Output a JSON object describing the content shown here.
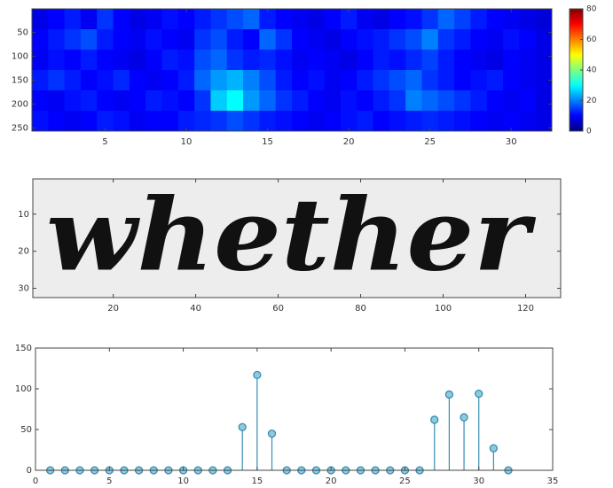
{
  "chart_data": [
    {
      "type": "heatmap",
      "xlim": [
        0.5,
        32.5
      ],
      "ylim": [
        0.5,
        256.5
      ],
      "xticks": [
        5,
        10,
        15,
        20,
        25,
        30
      ],
      "yticks": [
        50,
        100,
        150,
        200,
        250
      ],
      "clim": [
        0,
        80
      ],
      "cticks": [
        0,
        20,
        40,
        60,
        80
      ],
      "z": [
        [
          8,
          10,
          12,
          9,
          14,
          10,
          8,
          9,
          11,
          10,
          12,
          14,
          16,
          18,
          12,
          10,
          9,
          8,
          10,
          12,
          9,
          8,
          10,
          11,
          14,
          18,
          15,
          12,
          10,
          9,
          8,
          7
        ],
        [
          10,
          12,
          14,
          16,
          12,
          10,
          9,
          11,
          10,
          9,
          14,
          16,
          12,
          10,
          18,
          14,
          10,
          9,
          8,
          10,
          11,
          12,
          14,
          16,
          20,
          14,
          12,
          10,
          9,
          11,
          10,
          8
        ],
        [
          9,
          11,
          10,
          12,
          10,
          9,
          8,
          10,
          12,
          11,
          16,
          18,
          14,
          12,
          13,
          11,
          9,
          10,
          9,
          8,
          10,
          12,
          11,
          13,
          15,
          12,
          10,
          9,
          8,
          10,
          9,
          8
        ],
        [
          12,
          14,
          12,
          10,
          11,
          13,
          10,
          9,
          10,
          12,
          18,
          22,
          24,
          20,
          16,
          12,
          10,
          11,
          9,
          10,
          12,
          14,
          16,
          18,
          14,
          12,
          10,
          11,
          12,
          10,
          9,
          8
        ],
        [
          10,
          9,
          11,
          12,
          10,
          9,
          10,
          12,
          11,
          10,
          14,
          26,
          30,
          22,
          18,
          14,
          12,
          10,
          9,
          11,
          10,
          12,
          14,
          20,
          18,
          16,
          14,
          12,
          10,
          9,
          10,
          8
        ],
        [
          11,
          10,
          9,
          10,
          12,
          11,
          9,
          10,
          10,
          12,
          13,
          14,
          16,
          14,
          12,
          11,
          10,
          9,
          10,
          11,
          12,
          10,
          11,
          12,
          13,
          12,
          11,
          10,
          9,
          10,
          9,
          8
        ]
      ]
    },
    {
      "type": "image",
      "image_text": "whether",
      "xlim": [
        0.5,
        128.5
      ],
      "ylim": [
        0.5,
        32.5
      ],
      "xticks": [
        20,
        40,
        60,
        80,
        100,
        120
      ],
      "yticks": [
        10,
        20,
        30
      ]
    },
    {
      "type": "stem",
      "x": [
        1,
        2,
        3,
        4,
        5,
        6,
        7,
        8,
        9,
        10,
        11,
        12,
        13,
        14,
        15,
        16,
        17,
        18,
        19,
        20,
        21,
        22,
        23,
        24,
        25,
        26,
        27,
        28,
        29,
        30,
        31,
        32
      ],
      "values": [
        0,
        0,
        0,
        0,
        0,
        0,
        0,
        0,
        0,
        0,
        0,
        0,
        0,
        53,
        117,
        45,
        0,
        0,
        0,
        0,
        0,
        0,
        0,
        0,
        0,
        0,
        62,
        93,
        65,
        94,
        27,
        0
      ],
      "color": "#3a8db0",
      "xlim": [
        0,
        35
      ],
      "ylim": [
        0,
        150
      ],
      "xticks": [
        0,
        5,
        10,
        15,
        20,
        25,
        30,
        35
      ],
      "yticks": [
        0,
        50,
        100,
        150
      ]
    }
  ]
}
